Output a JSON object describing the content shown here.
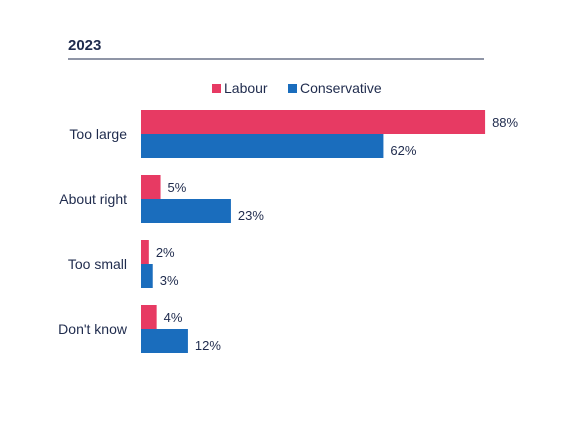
{
  "chart_data": {
    "type": "bar",
    "orientation": "horizontal",
    "title": "2023",
    "categories": [
      "Too large",
      "About right",
      "Too small",
      "Don't know"
    ],
    "series": [
      {
        "name": "Labour",
        "values": [
          88,
          5,
          2,
          4
        ],
        "color": "#e73a63"
      },
      {
        "name": "Conservative",
        "values": [
          62,
          23,
          3,
          12
        ],
        "color": "#1a6dbd"
      }
    ],
    "value_suffix": "%",
    "xlim": [
      0,
      100
    ],
    "grid": false,
    "legend_position": "top",
    "title_rule_color": "#1f2b4d"
  }
}
